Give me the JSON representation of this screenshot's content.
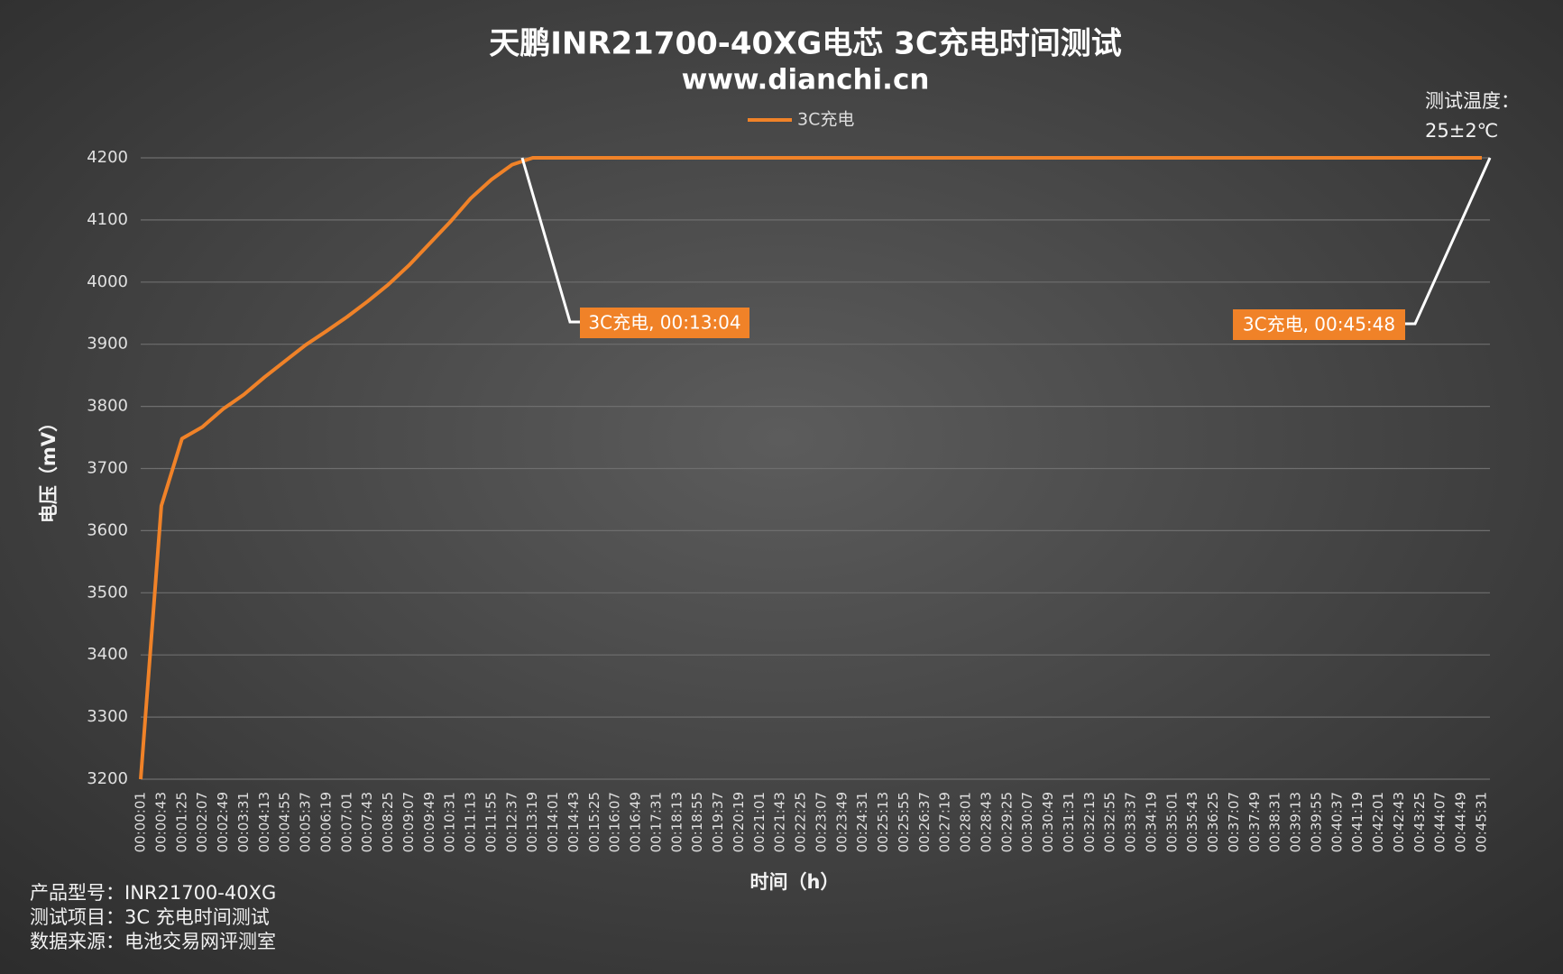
{
  "chart_data": {
    "type": "line",
    "title": "天鹏INR21700-40XG电芯 3C充电时间测试",
    "subtitle": "www.dianchi.cn",
    "y_label": "电压（mV）",
    "x_label": "时间（h）",
    "categories": [
      "00:00:01",
      "00:00:43",
      "00:01:25",
      "00:02:07",
      "00:02:49",
      "00:03:31",
      "00:04:13",
      "00:04:55",
      "00:05:37",
      "00:06:19",
      "00:07:01",
      "00:07:43",
      "00:08:25",
      "00:09:07",
      "00:09:49",
      "00:10:31",
      "00:11:13",
      "00:11:55",
      "00:12:37",
      "00:13:19",
      "00:14:01",
      "00:14:43",
      "00:15:25",
      "00:16:07",
      "00:16:49",
      "00:17:31",
      "00:18:13",
      "00:18:55",
      "00:19:37",
      "00:20:19",
      "00:21:01",
      "00:21:43",
      "00:22:25",
      "00:23:07",
      "00:23:49",
      "00:24:31",
      "00:25:13",
      "00:25:55",
      "00:26:37",
      "00:27:19",
      "00:28:01",
      "00:28:43",
      "00:29:25",
      "00:30:07",
      "00:30:49",
      "00:31:31",
      "00:32:13",
      "00:32:55",
      "00:33:37",
      "00:34:19",
      "00:35:01",
      "00:35:43",
      "00:36:25",
      "00:37:07",
      "00:37:49",
      "00:38:31",
      "00:39:13",
      "00:39:55",
      "00:40:37",
      "00:41:19",
      "00:42:01",
      "00:42:43",
      "00:43:25",
      "00:44:07",
      "00:44:49",
      "00:45:31"
    ],
    "series": [
      {
        "name": "3C充电",
        "color": "#f08228",
        "values": [
          3200,
          3640,
          3748,
          3767,
          3796,
          3819,
          3847,
          3873,
          3899,
          3921,
          3944,
          3969,
          3996,
          4027,
          4062,
          4097,
          4135,
          4165,
          4189,
          4200,
          4200,
          4200,
          4200,
          4200,
          4200,
          4200,
          4200,
          4200,
          4200,
          4200,
          4200,
          4200,
          4200,
          4200,
          4200,
          4200,
          4200,
          4200,
          4200,
          4200,
          4200,
          4200,
          4200,
          4200,
          4200,
          4200,
          4200,
          4200,
          4200,
          4200,
          4200,
          4200,
          4200,
          4200,
          4200,
          4200,
          4200,
          4200,
          4200,
          4200,
          4200,
          4200,
          4200,
          4200,
          4200,
          4200
        ]
      }
    ],
    "ylim": [
      3200,
      4200
    ],
    "yticks": [
      3200,
      3300,
      3400,
      3500,
      3600,
      3700,
      3800,
      3900,
      4000,
      4100,
      4200
    ],
    "grid": true,
    "legend": "top",
    "annotations": [
      "3C充电, 00:13:04",
      "3C充电, 00:45:48"
    ],
    "note": [
      "测试温度：",
      "25±2℃"
    ],
    "footer": [
      "产品型号：INR21700-40XG",
      "测试项目：3C 充电时间测试",
      "数据来源：电池交易网评测室"
    ]
  }
}
